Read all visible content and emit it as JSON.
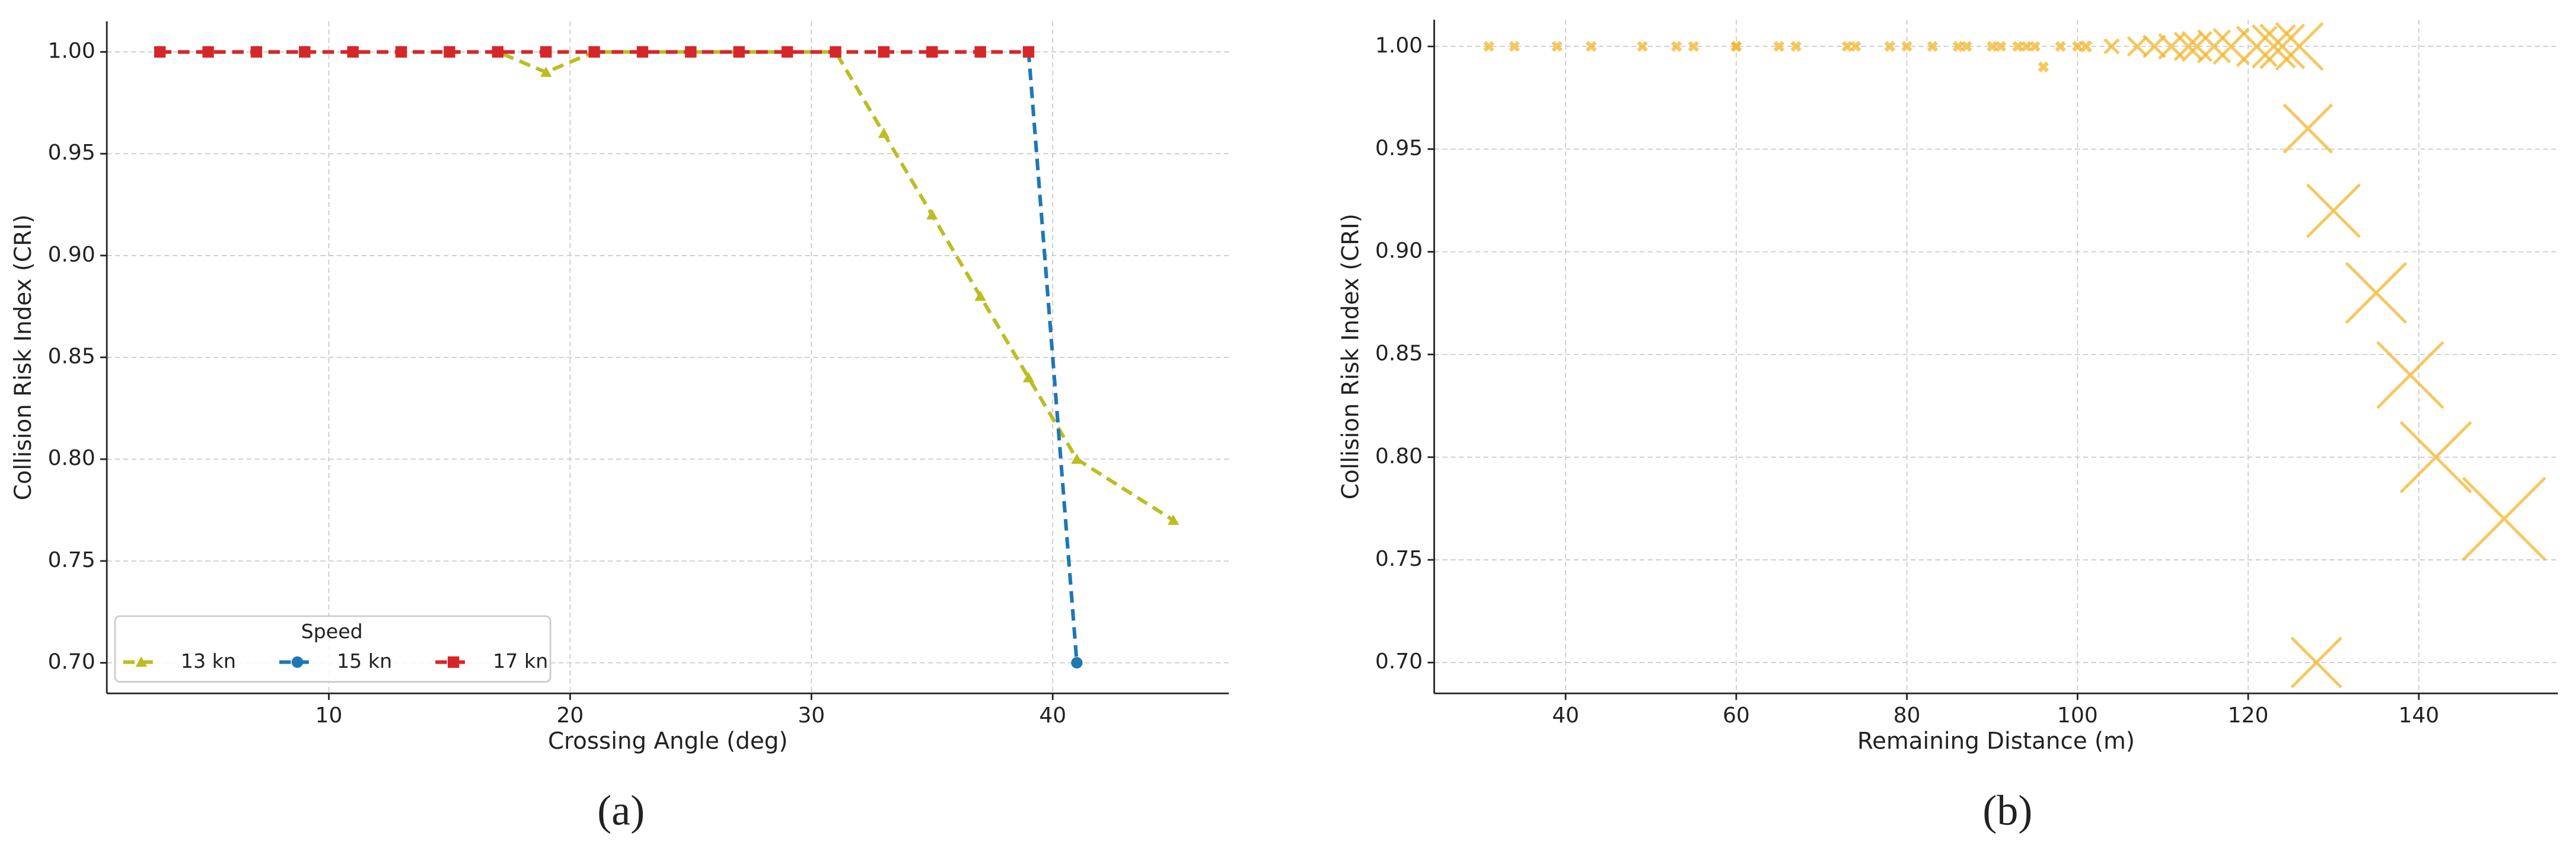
{
  "chart_data": [
    {
      "type": "line",
      "panel_label": "(a)",
      "xlabel": "Crossing Angle (deg)",
      "ylabel": "Collision Risk Index (CRI)",
      "xlim": [
        0.8,
        47.3
      ],
      "ylim": [
        0.685,
        1.015
      ],
      "xticks": [
        10,
        20,
        30,
        40
      ],
      "yticks": [
        {
          "value": 0.7,
          "label": "0.70"
        },
        0.75,
        {
          "value": 0.8,
          "label": "0.80"
        },
        0.85,
        {
          "value": 0.9,
          "label": "0.90"
        },
        0.95,
        {
          "value": 1.0,
          "label": "1.00"
        }
      ],
      "grid": true,
      "legend": "lower left",
      "legend_title": "Speed",
      "series": [
        {
          "name": "13 kn",
          "color": "#bcbd22",
          "marker": "triangle",
          "x": [
            3,
            5,
            7,
            9,
            11,
            13,
            15,
            17,
            19,
            21,
            23,
            25,
            27,
            29,
            31,
            33,
            35,
            37,
            39,
            41,
            45
          ],
          "values": [
            1.0,
            1.0,
            1.0,
            1.0,
            1.0,
            1.0,
            1.0,
            1.0,
            0.99,
            1.0,
            1.0,
            1.0,
            1.0,
            1.0,
            1.0,
            0.96,
            0.92,
            0.88,
            0.84,
            0.8,
            0.77
          ]
        },
        {
          "name": "15 kn",
          "color": "#1f77b4",
          "marker": "circle",
          "x": [
            3,
            5,
            7,
            9,
            11,
            13,
            15,
            17,
            19,
            21,
            23,
            25,
            27,
            29,
            31,
            33,
            35,
            37,
            39,
            41
          ],
          "values": [
            1.0,
            1.0,
            1.0,
            1.0,
            1.0,
            1.0,
            1.0,
            1.0,
            1.0,
            1.0,
            1.0,
            1.0,
            1.0,
            1.0,
            1.0,
            1.0,
            1.0,
            1.0,
            1.0,
            0.7
          ]
        },
        {
          "name": "17 kn",
          "color": "#d62728",
          "marker": "square",
          "x": [
            3,
            5,
            7,
            9,
            11,
            13,
            15,
            17,
            19,
            21,
            23,
            25,
            27,
            29,
            31,
            33,
            35,
            37,
            39
          ],
          "values": [
            1.0,
            1.0,
            1.0,
            1.0,
            1.0,
            1.0,
            1.0,
            1.0,
            1.0,
            1.0,
            1.0,
            1.0,
            1.0,
            1.0,
            1.0,
            1.0,
            1.0,
            1.0,
            1.0
          ]
        }
      ]
    },
    {
      "type": "scatter",
      "panel_label": "(b)",
      "xlabel": "Remaining Distance (m)",
      "ylabel": "Collision Risk Index (CRI)",
      "xlim": [
        24.6,
        156.3
      ],
      "ylim": [
        0.685,
        1.013
      ],
      "xticks": [
        40,
        60,
        80,
        100,
        120,
        140
      ],
      "yticks": [
        {
          "value": 0.7,
          "label": "0.70"
        },
        0.75,
        {
          "value": 0.8,
          "label": "0.80"
        },
        0.85,
        {
          "value": 0.9,
          "label": "0.90"
        },
        0.95,
        {
          "value": 1.0,
          "label": "1.00"
        }
      ],
      "grid": true,
      "color": "#f2b62b",
      "x": [
        31,
        34,
        39,
        43,
        49,
        53,
        55,
        60,
        60,
        65,
        67,
        73,
        74,
        78,
        80,
        83,
        86,
        87,
        90,
        91,
        93,
        94,
        95,
        96,
        98,
        100,
        101,
        104,
        107,
        109,
        111,
        113,
        114,
        116,
        118,
        121,
        123,
        124,
        126,
        127,
        130,
        135,
        139,
        142,
        150,
        128
      ],
      "values": [
        1.0,
        1.0,
        1.0,
        1.0,
        1.0,
        1.0,
        1.0,
        1.0,
        1.0,
        1.0,
        1.0,
        1.0,
        1.0,
        1.0,
        1.0,
        1.0,
        1.0,
        1.0,
        1.0,
        1.0,
        1.0,
        1.0,
        1.0,
        0.99,
        1.0,
        1.0,
        1.0,
        1.0,
        1.0,
        1.0,
        1.0,
        1.0,
        1.0,
        1.0,
        1.0,
        1.0,
        1.0,
        1.0,
        1.0,
        0.96,
        0.92,
        0.88,
        0.84,
        0.8,
        0.77,
        0.7
      ]
    }
  ]
}
